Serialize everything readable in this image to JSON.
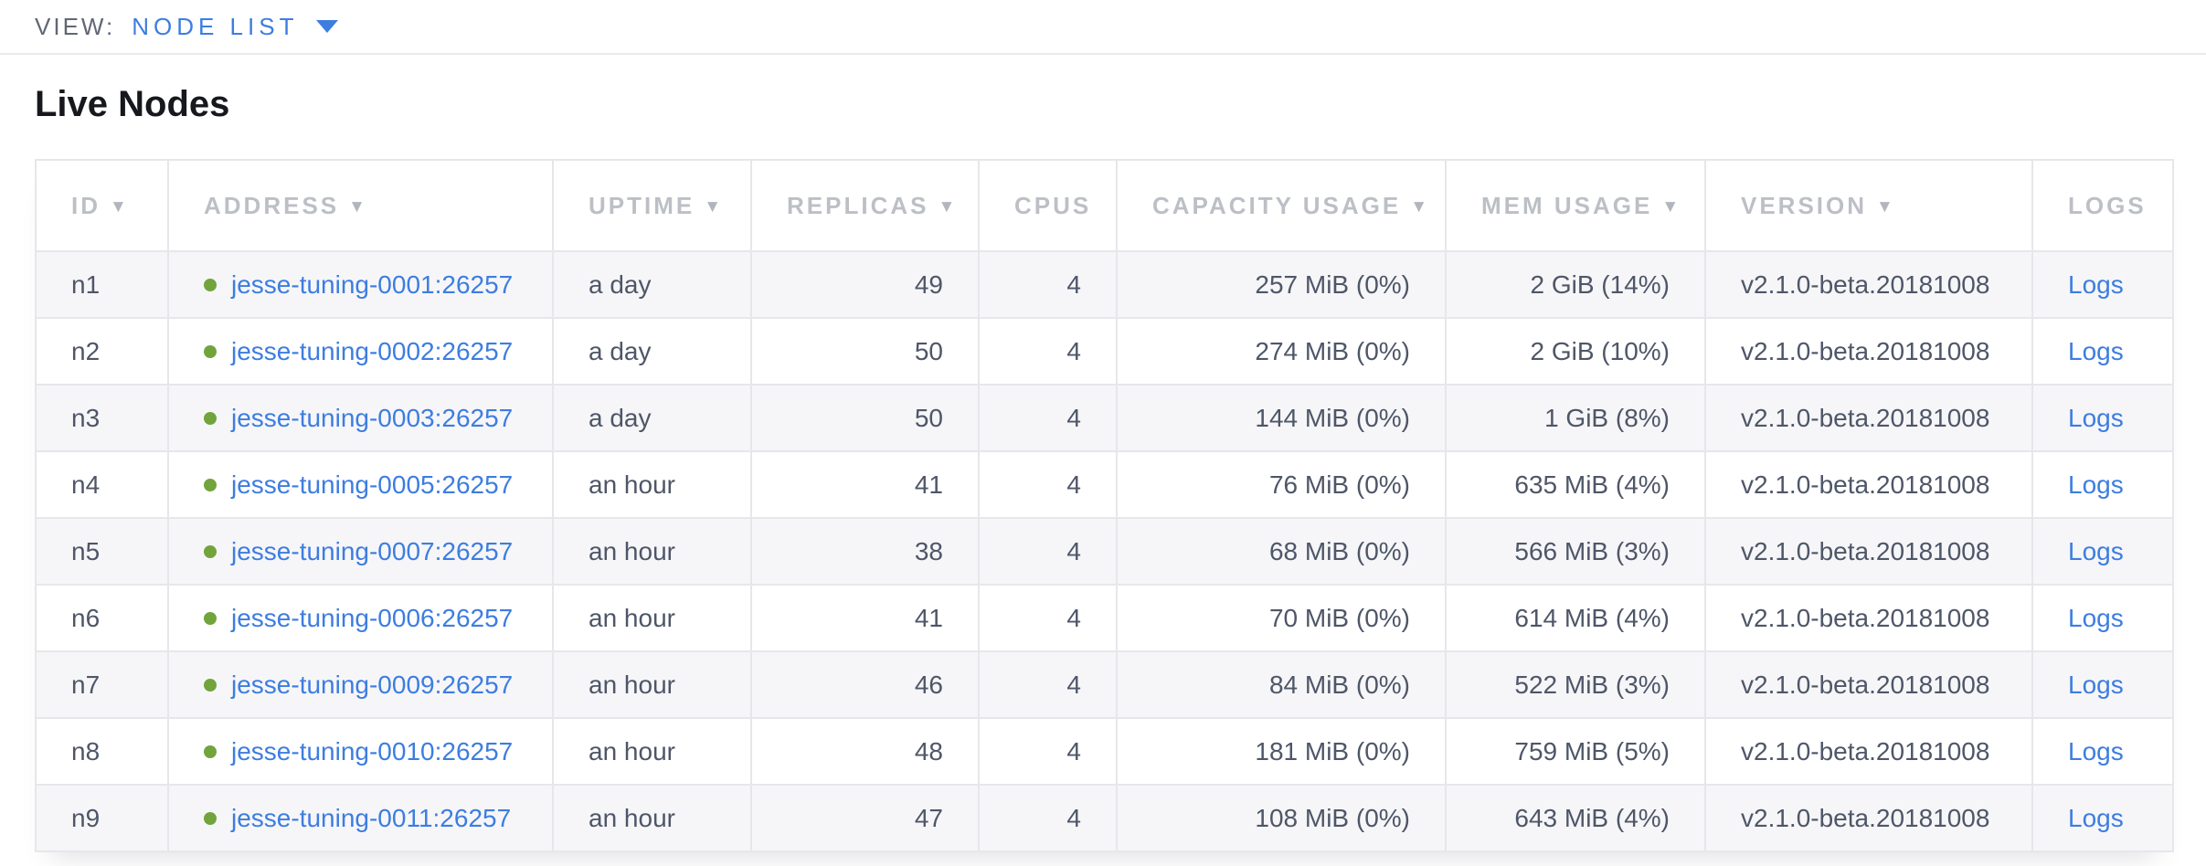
{
  "view_bar": {
    "label": "VIEW:",
    "selected_view": "NODE LIST"
  },
  "page_title": "Live Nodes",
  "icons": {
    "dropdown": "chevron-down-icon",
    "sort": "sort-desc-arrow-icon",
    "node_status": "status-dot-icon"
  },
  "colors": {
    "link_blue": "#3d7de0",
    "status_green": "#72a43d",
    "header_gray": "#bcbfc5",
    "body_text": "#4e5668",
    "row_stripe": "#f6f6f8",
    "border": "#e6e7ea"
  },
  "table": {
    "columns": [
      {
        "key": "id",
        "label": "ID",
        "sorted": true
      },
      {
        "key": "address",
        "label": "ADDRESS",
        "sorted": true
      },
      {
        "key": "uptime",
        "label": "UPTIME",
        "sorted": true
      },
      {
        "key": "replicas",
        "label": "REPLICAS",
        "sorted": true
      },
      {
        "key": "cpus",
        "label": "CPUS",
        "sorted": false
      },
      {
        "key": "capacity",
        "label": "CAPACITY USAGE",
        "sorted": true
      },
      {
        "key": "mem",
        "label": "MEM USAGE",
        "sorted": true
      },
      {
        "key": "version",
        "label": "VERSION",
        "sorted": true
      },
      {
        "key": "logs",
        "label": "LOGS",
        "sorted": false
      }
    ],
    "rows": [
      {
        "id": "n1",
        "status": "live",
        "address": "jesse-tuning-0001:26257",
        "uptime": "a day",
        "replicas": "49",
        "cpus": "4",
        "capacity": "257 MiB (0%)",
        "mem": "2 GiB (14%)",
        "version": "v2.1.0-beta.20181008",
        "logs": "Logs"
      },
      {
        "id": "n2",
        "status": "live",
        "address": "jesse-tuning-0002:26257",
        "uptime": "a day",
        "replicas": "50",
        "cpus": "4",
        "capacity": "274 MiB (0%)",
        "mem": "2 GiB (10%)",
        "version": "v2.1.0-beta.20181008",
        "logs": "Logs"
      },
      {
        "id": "n3",
        "status": "live",
        "address": "jesse-tuning-0003:26257",
        "uptime": "a day",
        "replicas": "50",
        "cpus": "4",
        "capacity": "144 MiB (0%)",
        "mem": "1 GiB (8%)",
        "version": "v2.1.0-beta.20181008",
        "logs": "Logs"
      },
      {
        "id": "n4",
        "status": "live",
        "address": "jesse-tuning-0005:26257",
        "uptime": "an hour",
        "replicas": "41",
        "cpus": "4",
        "capacity": "76 MiB (0%)",
        "mem": "635 MiB (4%)",
        "version": "v2.1.0-beta.20181008",
        "logs": "Logs"
      },
      {
        "id": "n5",
        "status": "live",
        "address": "jesse-tuning-0007:26257",
        "uptime": "an hour",
        "replicas": "38",
        "cpus": "4",
        "capacity": "68 MiB (0%)",
        "mem": "566 MiB (3%)",
        "version": "v2.1.0-beta.20181008",
        "logs": "Logs"
      },
      {
        "id": "n6",
        "status": "live",
        "address": "jesse-tuning-0006:26257",
        "uptime": "an hour",
        "replicas": "41",
        "cpus": "4",
        "capacity": "70 MiB (0%)",
        "mem": "614 MiB (4%)",
        "version": "v2.1.0-beta.20181008",
        "logs": "Logs"
      },
      {
        "id": "n7",
        "status": "live",
        "address": "jesse-tuning-0009:26257",
        "uptime": "an hour",
        "replicas": "46",
        "cpus": "4",
        "capacity": "84 MiB (0%)",
        "mem": "522 MiB (3%)",
        "version": "v2.1.0-beta.20181008",
        "logs": "Logs"
      },
      {
        "id": "n8",
        "status": "live",
        "address": "jesse-tuning-0010:26257",
        "uptime": "an hour",
        "replicas": "48",
        "cpus": "4",
        "capacity": "181 MiB (0%)",
        "mem": "759 MiB (5%)",
        "version": "v2.1.0-beta.20181008",
        "logs": "Logs"
      },
      {
        "id": "n9",
        "status": "live",
        "address": "jesse-tuning-0011:26257",
        "uptime": "an hour",
        "replicas": "47",
        "cpus": "4",
        "capacity": "108 MiB (0%)",
        "mem": "643 MiB (4%)",
        "version": "v2.1.0-beta.20181008",
        "logs": "Logs"
      }
    ]
  }
}
